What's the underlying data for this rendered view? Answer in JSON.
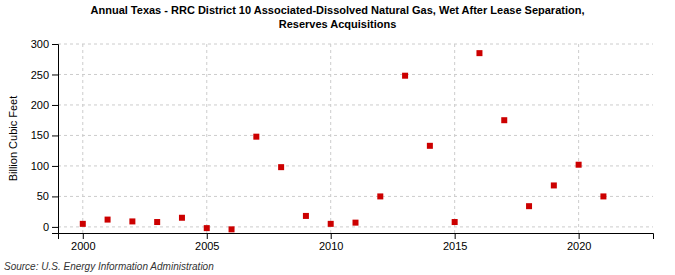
{
  "chart_data": {
    "type": "scatter",
    "title": "Annual Texas - RRC District 10 Associated-Dissolved Natural Gas, Wet After Lease Separation,\nReserves Acquisitions",
    "ylabel": "Billion Cubic Feet",
    "source": "Source: U.S. Energy Information Administration",
    "x": [
      2000,
      2001,
      2002,
      2003,
      2004,
      2005,
      2006,
      2007,
      2008,
      2009,
      2010,
      2011,
      2012,
      2013,
      2014,
      2015,
      2016,
      2017,
      2018,
      2019,
      2020,
      2021
    ],
    "values": [
      5,
      12,
      9,
      8,
      15,
      -2,
      -4,
      148,
      98,
      18,
      5,
      7,
      50,
      248,
      133,
      8,
      285,
      175,
      34,
      68,
      102,
      50
    ],
    "color": "#cc0000",
    "marker": "square",
    "xlim": [
      1999,
      2023
    ],
    "xticks": [
      2000,
      2005,
      2010,
      2015,
      2020
    ],
    "ylim": [
      -10,
      300
    ],
    "yticks": [
      0,
      50,
      100,
      150,
      200,
      250,
      300
    ],
    "grid": true
  }
}
